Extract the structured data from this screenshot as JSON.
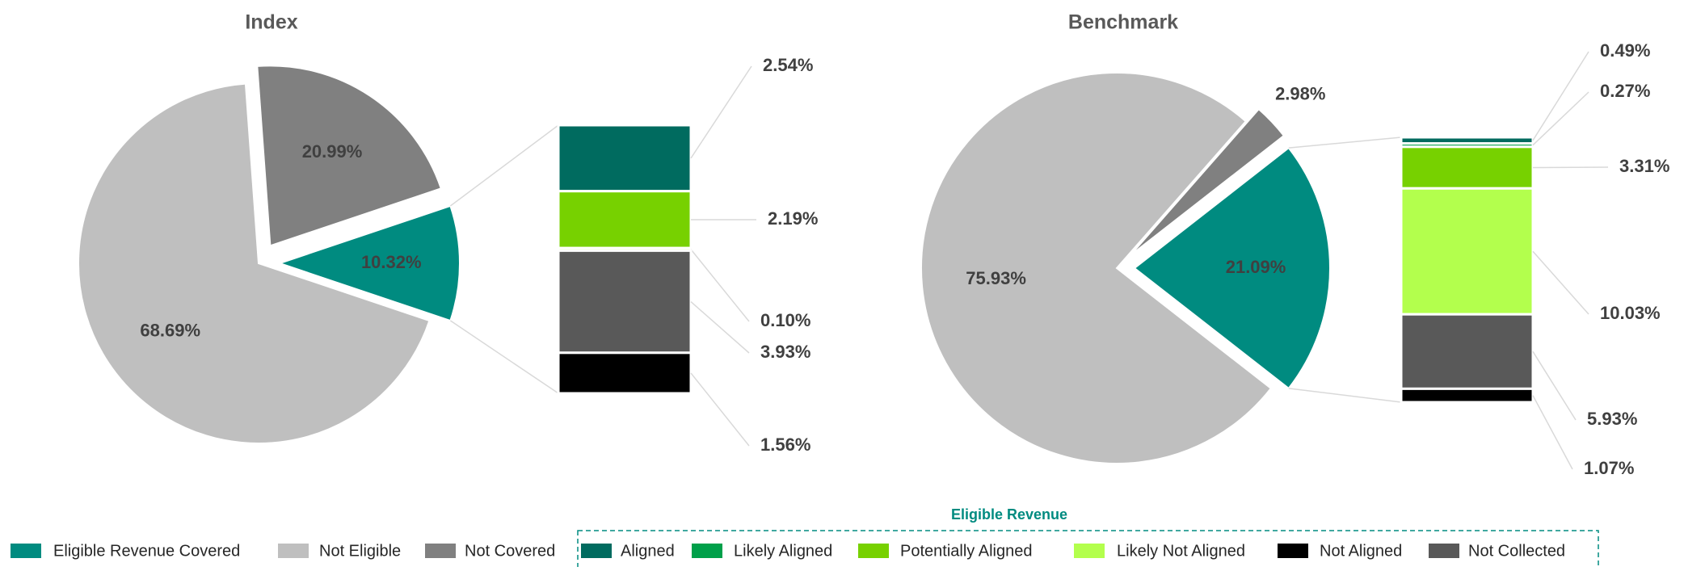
{
  "chart_data": [
    {
      "type": "pie-of-bar",
      "title": "Index",
      "categories": [
        "Eligible Revenue Covered",
        "Not Eligible",
        "Not Covered"
      ],
      "values": [
        10.32,
        68.69,
        20.99
      ],
      "value_labels": [
        "10.32%",
        "68.69%",
        "20.99%"
      ],
      "breakdown": {
        "categories": [
          "Aligned",
          "Potentially Aligned",
          "Likely Not Aligned",
          "Not Collected",
          "Not Aligned"
        ],
        "values": [
          2.54,
          2.19,
          0.1,
          3.93,
          1.56
        ],
        "value_labels": [
          "2.54%",
          "2.19%",
          "0.10%",
          "3.93%",
          "1.56%"
        ]
      }
    },
    {
      "type": "pie-of-bar",
      "title": "Benchmark",
      "categories": [
        "Eligible Revenue Covered",
        "Not Eligible",
        "Not Covered"
      ],
      "values": [
        21.09,
        75.93,
        2.98
      ],
      "value_labels": [
        "21.09%",
        "75.93%",
        "2.98%"
      ],
      "breakdown": {
        "categories": [
          "Aligned",
          "Likely Aligned",
          "Potentially Aligned",
          "Likely Not Aligned",
          "Not Collected",
          "Not Aligned"
        ],
        "values": [
          0.49,
          0.27,
          3.31,
          10.03,
          5.93,
          1.07
        ],
        "value_labels": [
          "0.49%",
          "0.27%",
          "3.31%",
          "10.03%",
          "5.93%",
          "1.07%"
        ]
      }
    }
  ],
  "legend": {
    "items": [
      {
        "name": "Eligible Revenue Covered",
        "color": "#008b80"
      },
      {
        "name": "Not Eligible",
        "color": "#bfbfbf"
      },
      {
        "name": "Not Covered",
        "color": "#808080"
      }
    ],
    "group_title": "Eligible Revenue",
    "group_items": [
      {
        "name": "Aligned",
        "color": "#006b5f"
      },
      {
        "name": "Likely Aligned",
        "color": "#00a04a"
      },
      {
        "name": "Potentially Aligned",
        "color": "#77d100"
      },
      {
        "name": "Likely Not Aligned",
        "color": "#b3ff4d"
      },
      {
        "name": "Not Aligned",
        "color": "#000000"
      },
      {
        "name": "Not Collected",
        "color": "#595959"
      }
    ]
  }
}
